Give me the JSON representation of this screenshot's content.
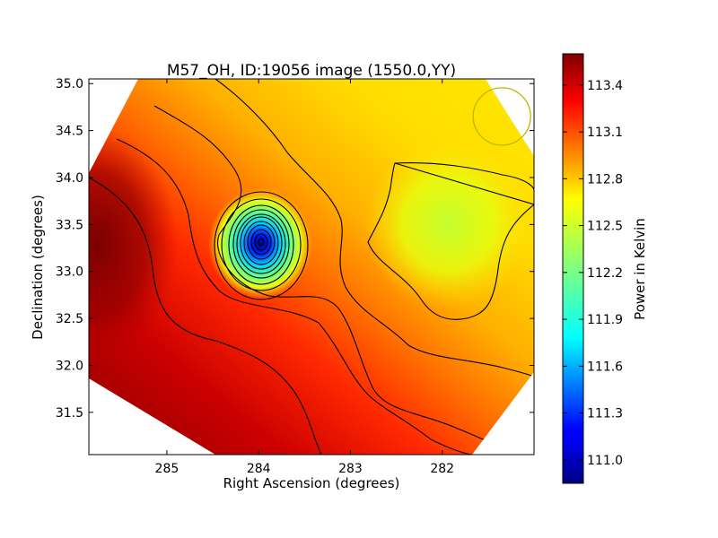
{
  "chart_data": {
    "type": "heatmap",
    "title": "M57_OH, ID:19056 image (1550.0,YY)",
    "xlabel": "Right Ascension (degrees)",
    "ylabel": "Declination (degrees)",
    "colorbar_label": "Power in Kelvin",
    "xlim": [
      285.85,
      281.0
    ],
    "ylim": [
      31.05,
      35.05
    ],
    "x_axis_inverted": true,
    "xticks": [
      285,
      284,
      283,
      282
    ],
    "xtick_labels": [
      "285",
      "284",
      "283",
      "282"
    ],
    "yticks": [
      31.5,
      32.0,
      32.5,
      33.0,
      33.5,
      34.0,
      34.5,
      35.0
    ],
    "ytick_labels": [
      "31.5",
      "32.0",
      "32.5",
      "33.0",
      "33.5",
      "34.0",
      "34.5",
      "35.0"
    ],
    "colorbar_range": [
      110.85,
      113.6
    ],
    "colorbar_ticks": [
      111.0,
      111.3,
      111.6,
      111.9,
      112.2,
      112.5,
      112.8,
      113.1,
      113.4
    ],
    "colorbar_tick_labels": [
      "111.0",
      "111.3",
      "111.6",
      "111.9",
      "112.2",
      "112.5",
      "112.8",
      "113.1",
      "113.4"
    ],
    "colormap": "jet",
    "features": [
      {
        "kind": "minimum",
        "ra": 283.93,
        "dec": 33.3,
        "value": 110.9
      },
      {
        "kind": "maximum",
        "ra": 285.75,
        "dec": 33.3,
        "value": 113.6
      },
      {
        "kind": "local-low",
        "ra": 282.0,
        "dec": 33.5,
        "value": 112.45
      }
    ],
    "beam_circle": {
      "ra": 281.35,
      "dec": 34.65,
      "color": "#b8b800"
    },
    "contours": true,
    "grid": false
  }
}
